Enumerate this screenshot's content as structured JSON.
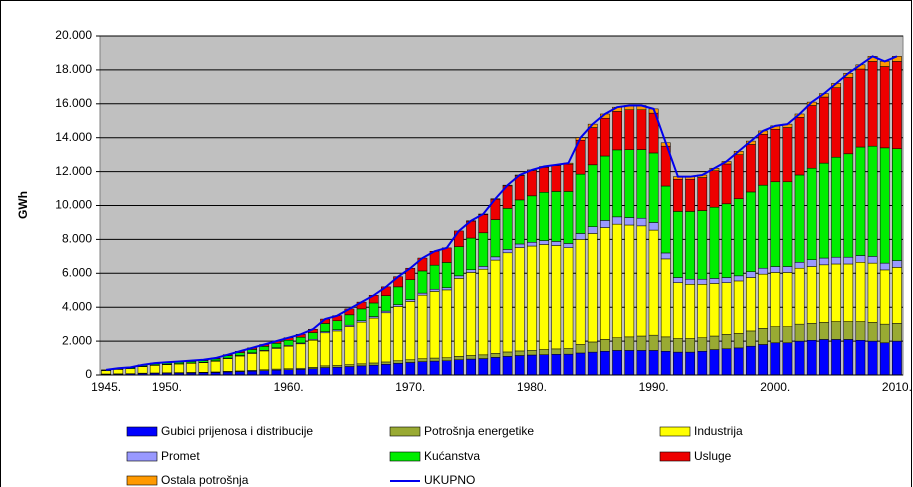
{
  "chart_data": {
    "type": "bar",
    "ylabel": "GWh",
    "categories": [
      "1945.",
      null,
      null,
      null,
      null,
      "1950.",
      null,
      null,
      null,
      null,
      null,
      null,
      null,
      null,
      null,
      "1960.",
      null,
      null,
      null,
      null,
      null,
      null,
      null,
      null,
      null,
      "1970.",
      null,
      null,
      null,
      null,
      null,
      null,
      null,
      null,
      null,
      "1980.",
      null,
      null,
      null,
      null,
      null,
      null,
      null,
      null,
      null,
      "1990.",
      null,
      null,
      null,
      null,
      null,
      null,
      null,
      null,
      null,
      "2000.",
      null,
      null,
      null,
      null,
      null,
      null,
      null,
      null,
      null,
      "2010."
    ],
    "series": [
      {
        "name": "Gubici prijenosa i distribucije",
        "color": "#0000ff",
        "values": [
          50,
          60,
          70,
          90,
          100,
          110,
          120,
          120,
          130,
          150,
          180,
          200,
          230,
          260,
          290,
          310,
          330,
          370,
          440,
          460,
          500,
          540,
          580,
          630,
          690,
          740,
          790,
          820,
          840,
          900,
          940,
          970,
          1040,
          1100,
          1150,
          1180,
          1200,
          1220,
          1230,
          1300,
          1350,
          1400,
          1450,
          1450,
          1450,
          1450,
          1400,
          1350,
          1350,
          1400,
          1500,
          1550,
          1600,
          1700,
          1800,
          1900,
          1900,
          2000,
          2050,
          2100,
          2100,
          2100,
          2050,
          2000,
          1900,
          2000
        ]
      },
      {
        "name": "Potrošnja energetike",
        "color": "#99aa33",
        "values": [
          10,
          10,
          10,
          20,
          20,
          20,
          20,
          30,
          30,
          30,
          40,
          40,
          50,
          50,
          60,
          60,
          70,
          80,
          100,
          100,
          110,
          120,
          130,
          140,
          150,
          160,
          170,
          180,
          180,
          200,
          210,
          220,
          240,
          260,
          270,
          280,
          300,
          320,
          330,
          500,
          600,
          700,
          750,
          800,
          850,
          900,
          850,
          800,
          800,
          800,
          800,
          850,
          850,
          900,
          950,
          950,
          950,
          1000,
          1000,
          1000,
          1050,
          1050,
          1100,
          1100,
          1100,
          1050
        ]
      },
      {
        "name": "Industrija",
        "color": "#ffff00",
        "values": [
          190,
          260,
          290,
          380,
          450,
          480,
          510,
          540,
          570,
          630,
          750,
          880,
          990,
          1110,
          1220,
          1330,
          1440,
          1600,
          1950,
          2040,
          2250,
          2460,
          2650,
          2900,
          3200,
          3440,
          3750,
          3930,
          4000,
          4600,
          4900,
          5050,
          5500,
          5850,
          6100,
          6150,
          6200,
          6100,
          5950,
          6200,
          6400,
          6600,
          6700,
          6600,
          6500,
          6200,
          4600,
          3300,
          3200,
          3150,
          3100,
          3050,
          3100,
          3150,
          3200,
          3200,
          3200,
          3300,
          3350,
          3400,
          3400,
          3400,
          3500,
          3500,
          3200,
          3300
        ]
      },
      {
        "name": "Promet",
        "color": "#9999ff",
        "values": [
          10,
          10,
          10,
          20,
          20,
          20,
          20,
          20,
          20,
          30,
          30,
          30,
          40,
          40,
          40,
          50,
          50,
          60,
          70,
          70,
          80,
          80,
          90,
          100,
          110,
          110,
          120,
          130,
          130,
          150,
          160,
          170,
          190,
          200,
          210,
          220,
          230,
          240,
          250,
          350,
          400,
          420,
          430,
          440,
          450,
          450,
          350,
          300,
          300,
          300,
          300,
          300,
          300,
          350,
          350,
          350,
          350,
          350,
          400,
          400,
          400,
          400,
          400,
          400,
          400,
          400
        ]
      },
      {
        "name": "Kućanstva",
        "color": "#00ee00",
        "values": [
          30,
          40,
          50,
          60,
          70,
          80,
          90,
          90,
          100,
          110,
          140,
          170,
          200,
          230,
          260,
          300,
          340,
          390,
          480,
          530,
          610,
          700,
          800,
          910,
          1050,
          1170,
          1310,
          1420,
          1490,
          1720,
          1870,
          1980,
          2200,
          2420,
          2600,
          2740,
          2850,
          2950,
          3070,
          3500,
          3650,
          3800,
          3950,
          4000,
          4050,
          4100,
          3950,
          3900,
          4000,
          4050,
          4200,
          4350,
          4550,
          4700,
          4900,
          5000,
          5000,
          5150,
          5400,
          5600,
          5900,
          6100,
          6400,
          6500,
          6800,
          6600
        ]
      },
      {
        "name": "Usluge",
        "color": "#ee0000",
        "values": [
          10,
          20,
          20,
          30,
          40,
          40,
          40,
          50,
          50,
          50,
          60,
          80,
          90,
          110,
          130,
          150,
          170,
          200,
          260,
          300,
          350,
          400,
          450,
          520,
          600,
          680,
          760,
          820,
          860,
          930,
          1000,
          1080,
          1200,
          1330,
          1430,
          1480,
          1470,
          1520,
          1610,
          2000,
          2200,
          2230,
          2270,
          2360,
          2350,
          2350,
          2350,
          1900,
          1900,
          1950,
          2150,
          2350,
          2600,
          2800,
          3000,
          3100,
          3200,
          3400,
          3700,
          3900,
          4100,
          4500,
          4600,
          5000,
          4800,
          5150
        ]
      },
      {
        "name": "Ostala potrošnja",
        "color": "#ff9900",
        "values": [
          0,
          0,
          0,
          0,
          0,
          0,
          0,
          0,
          0,
          0,
          0,
          0,
          0,
          0,
          0,
          0,
          0,
          0,
          0,
          0,
          0,
          0,
          0,
          0,
          0,
          0,
          0,
          0,
          0,
          0,
          20,
          30,
          30,
          40,
          40,
          50,
          50,
          50,
          60,
          150,
          200,
          250,
          250,
          250,
          250,
          250,
          200,
          150,
          150,
          150,
          150,
          150,
          200,
          200,
          200,
          200,
          200,
          200,
          200,
          200,
          250,
          250,
          250,
          300,
          300,
          300
        ]
      }
    ],
    "line": {
      "name": "UKUPNO",
      "color": "#0000ee",
      "values": [
        300,
        400,
        450,
        600,
        700,
        750,
        800,
        850,
        900,
        1000,
        1200,
        1400,
        1600,
        1800,
        2000,
        2200,
        2400,
        2700,
        3300,
        3500,
        3900,
        4300,
        4700,
        5200,
        5800,
        6300,
        6900,
        7300,
        7500,
        8500,
        9100,
        9500,
        10400,
        11200,
        11800,
        12100,
        12300,
        12400,
        12500,
        14000,
        14800,
        15400,
        15800,
        15900,
        15900,
        15700,
        13700,
        11700,
        11700,
        11800,
        12200,
        12600,
        13200,
        13800,
        14400,
        14700,
        14800,
        15400,
        16100,
        16600,
        17200,
        17800,
        18300,
        18800,
        18500,
        18800
      ]
    },
    "ylim": [
      0,
      20000
    ],
    "yticks": [
      0,
      {
        "value": 2000,
        "label": "2.000"
      },
      {
        "value": 4000,
        "label": "4.000"
      },
      {
        "value": 6000,
        "label": "6.000"
      },
      {
        "value": 8000,
        "label": "8.000"
      },
      {
        "value": 10000,
        "label": "10.000"
      },
      {
        "value": 12000,
        "label": "12.000"
      },
      {
        "value": 14000,
        "label": "14.000"
      },
      {
        "value": 16000,
        "label": "16.000"
      },
      {
        "value": 18000,
        "label": "18.000"
      },
      {
        "value": 20000,
        "label": "20.000"
      }
    ],
    "grid": true,
    "plot_background": "#c0c0c0"
  }
}
